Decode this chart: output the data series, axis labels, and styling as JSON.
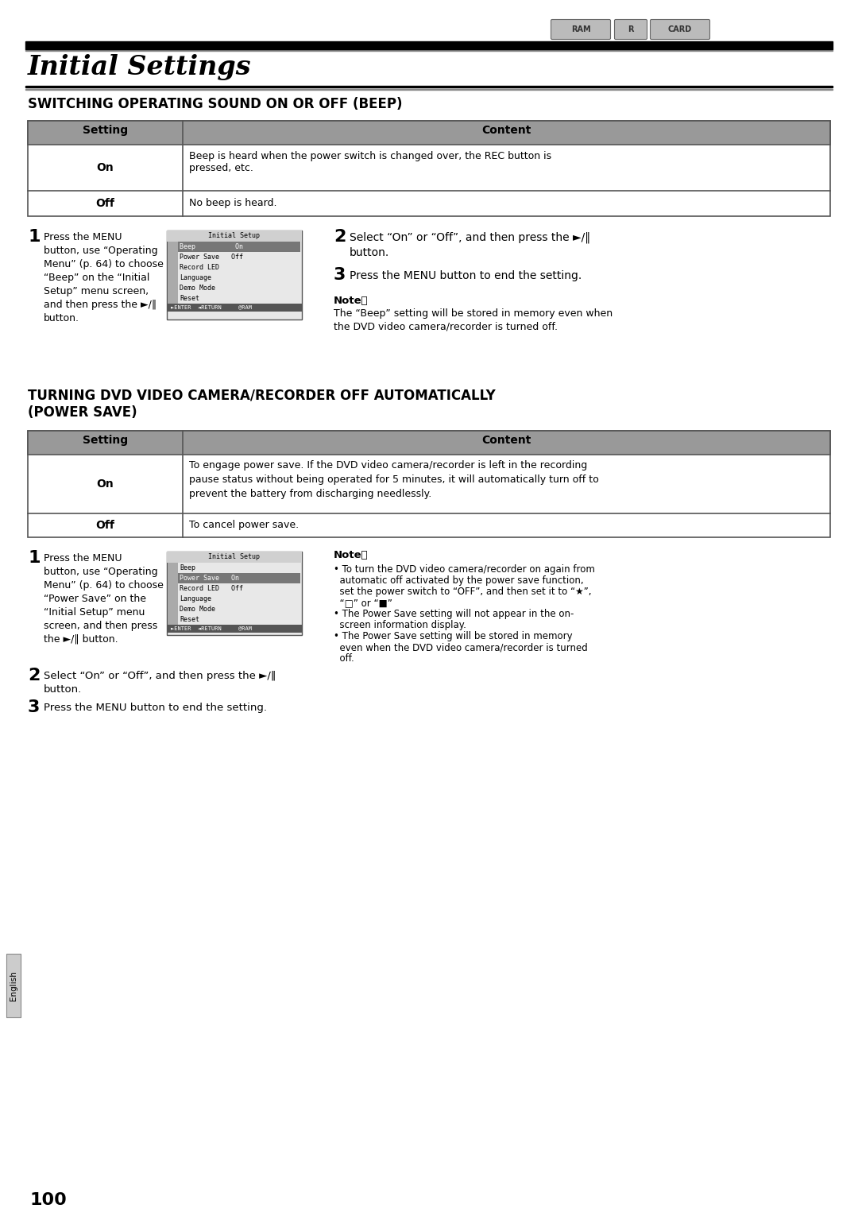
{
  "bg_color": "#ffffff",
  "header_tags": [
    "RAM",
    "R",
    "CARD"
  ],
  "chapter_title": "Initial Settings",
  "section1_title": "SWITCHING OPERATING SOUND ON OR OFF (BEEP)",
  "section2_title": "TURNING DVD VIDEO CAMERA/RECORDER OFF AUTOMATICALLY\n(POWER SAVE)",
  "table1_headers": [
    "Setting",
    "Content"
  ],
  "table1_rows": [
    [
      "On",
      "Beep is heard when the power switch is changed over, the REC button is\npressed, etc."
    ],
    [
      "Off",
      "No beep is heard."
    ]
  ],
  "table2_headers": [
    "Setting",
    "Content"
  ],
  "table2_rows": [
    [
      "On",
      "To engage power save. If the DVD video camera/recorder is left in the recording\npause status without being operated for 5 minutes, it will automatically turn off to\nprevent the battery from discharging needlessly."
    ],
    [
      "Off",
      "To cancel power save."
    ]
  ],
  "step1_beep_num": "1",
  "step1_beep": "Press the MENU\nbutton, use “Operating\nMenu” (p. 64) to choose\n“Beep” on the “Initial\nSetup” menu screen,\nand then press the ►/‖\nbutton.",
  "step2_beep_num": "2",
  "step2_beep": "Select “On” or “Off”, and then press the ►/‖\nbutton.",
  "step3_beep_num": "3",
  "step3_beep": "Press the MENU button to end the setting.",
  "note_beep_title": "Note：",
  "note_beep": "The “Beep” setting will be stored in memory even when\nthe DVD video camera/recorder is turned off.",
  "step1_power_num": "1",
  "step1_power": "Press the MENU\nbutton, use “Operating\nMenu” (p. 64) to choose\n“Power Save” on the\n“Initial Setup” menu\nscreen, and then press\nthe ►/‖ button.",
  "step2_power_num": "2",
  "step2_power": "Select “On” or “Off”, and then press the ►/‖\nbutton.",
  "step3_power_num": "3",
  "step3_power": "Press the MENU button to end the setting.",
  "note_power_title": "Note：",
  "note_power_lines": [
    "• To turn the DVD video camera/recorder on again from",
    "  automatic off activated by the power save function,",
    "  set the power switch to “OFF”, and then set it to “★”,",
    "  “□” or “■”",
    "• The Power Save setting will not appear in the on-",
    "  screen information display.",
    "• The Power Save setting will be stored in memory",
    "  even when the DVD video camera/recorder is turned",
    "  off."
  ],
  "page_number": "100",
  "side_label": "English",
  "menu_beep_title": "Initial Setup",
  "menu_beep_items": [
    {
      "text": "Beep          On",
      "highlight": true
    },
    {
      "text": "Power Save   Off",
      "highlight": false
    },
    {
      "text": "Record LED",
      "highlight": false
    },
    {
      "text": "Language",
      "highlight": false
    },
    {
      "text": "Demo Mode",
      "highlight": false
    },
    {
      "text": "Reset",
      "highlight": false
    }
  ],
  "menu_beep_footer": "►ENTER  ◄RETURN     @RAM",
  "menu_power_title": "Initial Setup",
  "menu_power_items": [
    {
      "text": "Beep",
      "highlight": false
    },
    {
      "text": "Power Save   On",
      "highlight": true
    },
    {
      "text": "Record LED   Off",
      "highlight": false
    },
    {
      "text": "Language",
      "highlight": false
    },
    {
      "text": "Demo Mode",
      "highlight": false
    },
    {
      "text": "Reset",
      "highlight": false
    }
  ],
  "menu_power_footer": "►ENTER  ◄RETURN     @RAM"
}
